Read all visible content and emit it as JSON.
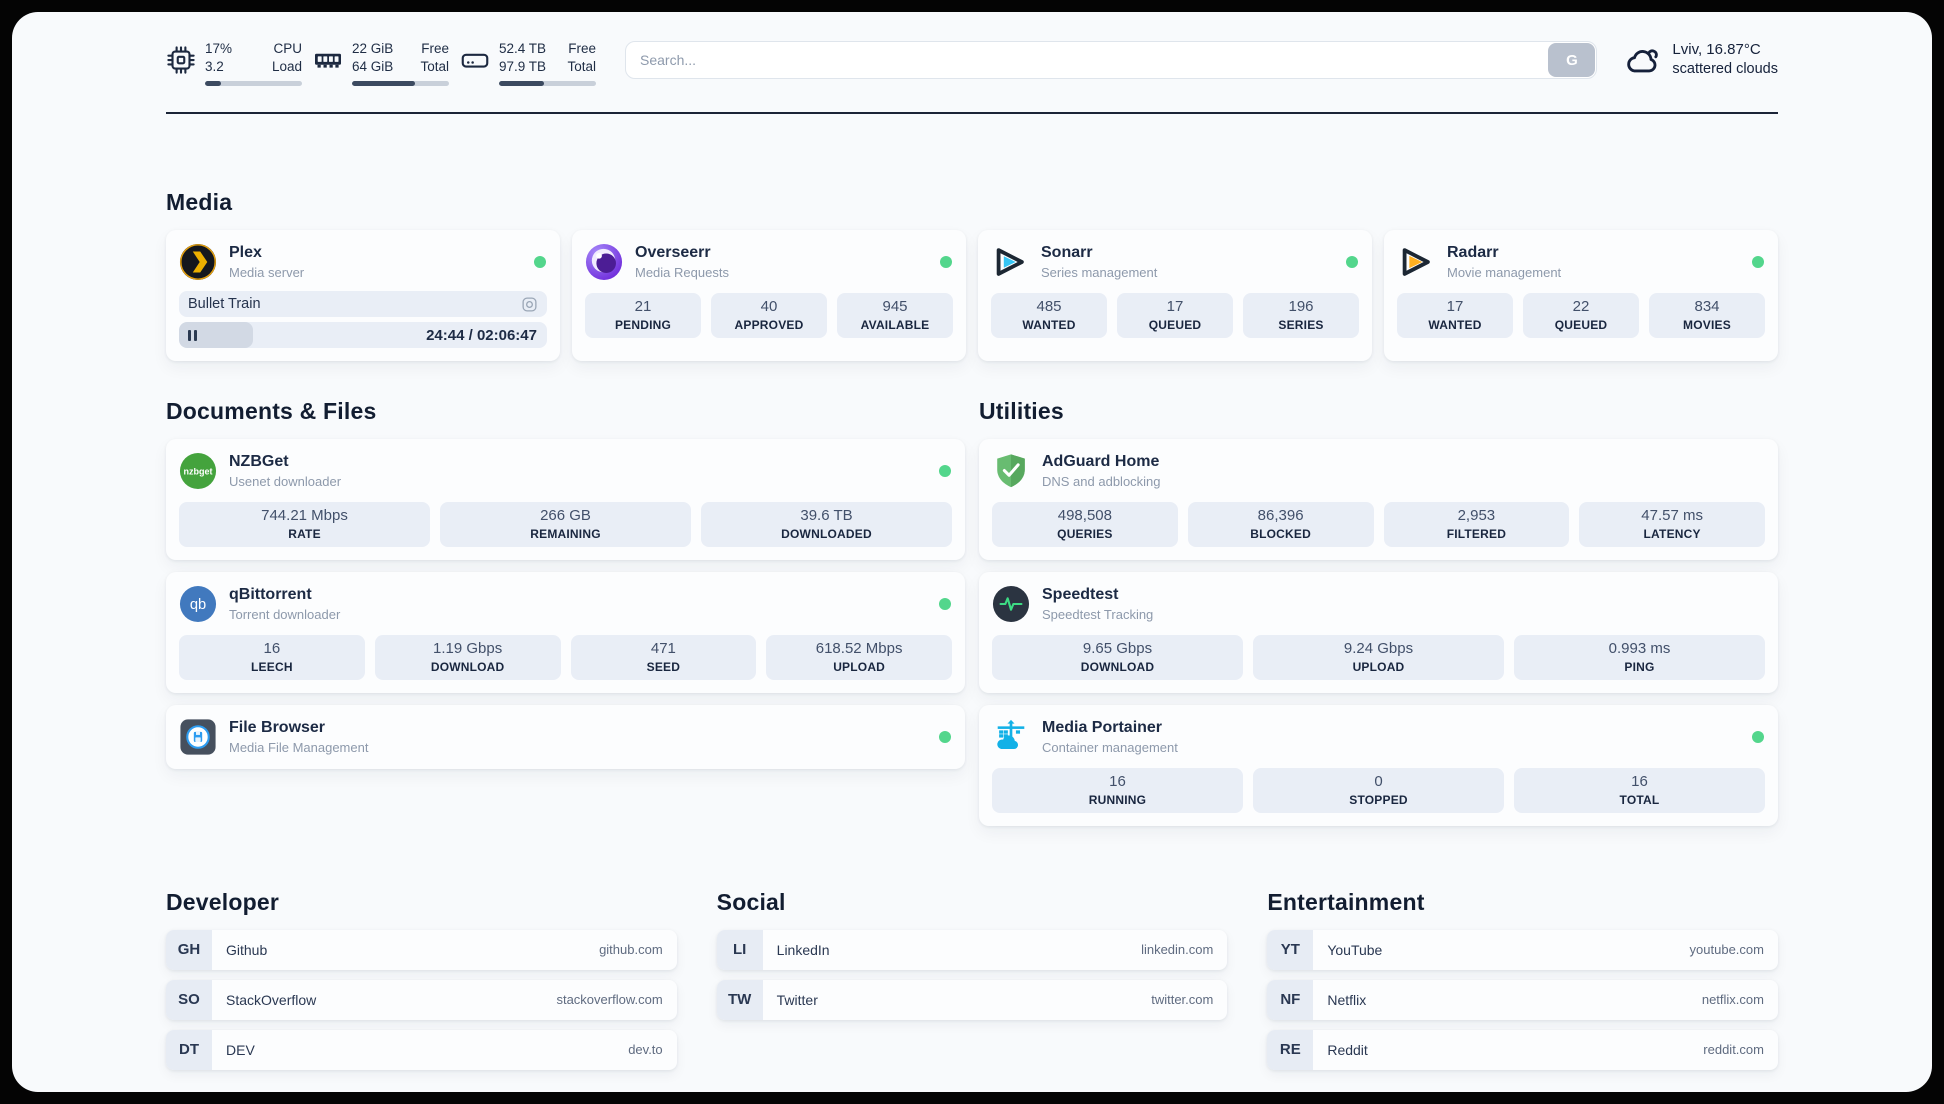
{
  "colors": {
    "status_online": "#53d68c",
    "header_bar_fill": "#3c4a60",
    "divider": "#1b2437"
  },
  "header": {
    "system": [
      {
        "icon": "cpu",
        "values": [
          "17%",
          "3.2"
        ],
        "labels": [
          "CPU",
          "Load"
        ],
        "progress": 17
      },
      {
        "icon": "ram",
        "values": [
          "22 GiB",
          "64 GiB"
        ],
        "labels": [
          "Free",
          "Total"
        ],
        "progress": 65
      },
      {
        "icon": "disk",
        "values": [
          "52.4 TB",
          "97.9 TB"
        ],
        "labels": [
          "Free",
          "Total"
        ],
        "progress": 46
      }
    ],
    "search": {
      "placeholder": "Search...",
      "button_label": "G"
    },
    "weather": {
      "icon": "cloud",
      "location": "Lviv, 16.87°C",
      "condition": "scattered clouds"
    }
  },
  "media": {
    "title": "Media",
    "cards": [
      {
        "id": "plex",
        "name": "Plex",
        "description": "Media server",
        "online": true,
        "now_playing": {
          "title": "Bullet Train",
          "elapsed": "24:44",
          "duration": "02:06:47",
          "progress_percent": 20
        }
      },
      {
        "id": "overseerr",
        "name": "Overseerr",
        "description": "Media Requests",
        "online": true,
        "stats": [
          {
            "value": "21",
            "label": "PENDING"
          },
          {
            "value": "40",
            "label": "APPROVED"
          },
          {
            "value": "945",
            "label": "AVAILABLE"
          }
        ]
      },
      {
        "id": "sonarr",
        "name": "Sonarr",
        "description": "Series management",
        "online": true,
        "stats": [
          {
            "value": "485",
            "label": "WANTED"
          },
          {
            "value": "17",
            "label": "QUEUED"
          },
          {
            "value": "196",
            "label": "SERIES"
          }
        ]
      },
      {
        "id": "radarr",
        "name": "Radarr",
        "description": "Movie management",
        "online": true,
        "stats": [
          {
            "value": "17",
            "label": "WANTED"
          },
          {
            "value": "22",
            "label": "QUEUED"
          },
          {
            "value": "834",
            "label": "MOVIES"
          }
        ]
      }
    ]
  },
  "documents": {
    "title": "Documents & Files",
    "cards": [
      {
        "id": "nzbget",
        "name": "NZBGet",
        "description": "Usenet downloader",
        "online": true,
        "stats": [
          {
            "value": "744.21 Mbps",
            "label": "RATE"
          },
          {
            "value": "266 GB",
            "label": "REMAINING"
          },
          {
            "value": "39.6 TB",
            "label": "DOWNLOADED"
          }
        ]
      },
      {
        "id": "qbittorrent",
        "name": "qBittorrent",
        "description": "Torrent downloader",
        "online": true,
        "stats": [
          {
            "value": "16",
            "label": "LEECH"
          },
          {
            "value": "1.19 Gbps",
            "label": "DOWNLOAD"
          },
          {
            "value": "471",
            "label": "SEED"
          },
          {
            "value": "618.52 Mbps",
            "label": "UPLOAD"
          }
        ]
      },
      {
        "id": "filebrowser",
        "name": "File Browser",
        "description": "Media File Management",
        "online": true
      }
    ]
  },
  "utilities": {
    "title": "Utilities",
    "cards": [
      {
        "id": "adguard",
        "name": "AdGuard Home",
        "description": "DNS and adblocking",
        "online": false,
        "stats": [
          {
            "value": "498,508",
            "label": "QUERIES"
          },
          {
            "value": "86,396",
            "label": "BLOCKED"
          },
          {
            "value": "2,953",
            "label": "FILTERED"
          },
          {
            "value": "47.57 ms",
            "label": "LATENCY"
          }
        ]
      },
      {
        "id": "speedtest",
        "name": "Speedtest",
        "description": "Speedtest Tracking",
        "online": false,
        "stats": [
          {
            "value": "9.65 Gbps",
            "label": "DOWNLOAD"
          },
          {
            "value": "9.24 Gbps",
            "label": "UPLOAD"
          },
          {
            "value": "0.993 ms",
            "label": "PING"
          }
        ]
      },
      {
        "id": "portainer",
        "name": "Media Portainer",
        "description": "Container management",
        "online": true,
        "stats": [
          {
            "value": "16",
            "label": "RUNNING"
          },
          {
            "value": "0",
            "label": "STOPPED"
          },
          {
            "value": "16",
            "label": "TOTAL"
          }
        ]
      }
    ]
  },
  "bookmarks": [
    {
      "title": "Developer",
      "items": [
        {
          "abbr": "GH",
          "name": "Github",
          "url": "github.com"
        },
        {
          "abbr": "SO",
          "name": "StackOverflow",
          "url": "stackoverflow.com"
        },
        {
          "abbr": "DT",
          "name": "DEV",
          "url": "dev.to"
        }
      ]
    },
    {
      "title": "Social",
      "items": [
        {
          "abbr": "LI",
          "name": "LinkedIn",
          "url": "linkedin.com"
        },
        {
          "abbr": "TW",
          "name": "Twitter",
          "url": "twitter.com"
        }
      ]
    },
    {
      "title": "Entertainment",
      "items": [
        {
          "abbr": "YT",
          "name": "YouTube",
          "url": "youtube.com"
        },
        {
          "abbr": "NF",
          "name": "Netflix",
          "url": "netflix.com"
        },
        {
          "abbr": "RE",
          "name": "Reddit",
          "url": "reddit.com"
        }
      ]
    }
  ]
}
